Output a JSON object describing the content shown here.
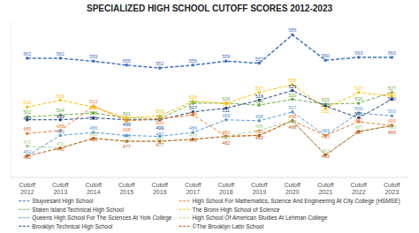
{
  "chart_data": {
    "type": "line",
    "title": "SPECIALIZED HIGH SCHOOL CUTOFF SCORES 2012-2023",
    "categories": [
      "Cutoff\n2012",
      "Cutoff\n2013",
      "Cutoff\n2014",
      "Cutoff\n2015",
      "Cutoff\n2016",
      "Cutoff\n2017",
      "Cutoff\n2018",
      "Cutoff\n2019",
      "Cutoff\n2020",
      "Cutoff\n2021",
      "Cutoff\n2022",
      "Cutoff\n2023"
    ],
    "series": [
      {
        "name": "Stuyvesant High School",
        "color": "#4472c4",
        "values": [
          562,
          562,
          559,
          555,
          552,
          555,
          559,
          557,
          586,
          560,
          563,
          563
        ]
      },
      {
        "name": "Staten Island Technical High School",
        "color": "#70ad47",
        "values": [
          502,
          504,
          506,
          501,
          500,
          516,
          516,
          514,
          520,
          515,
          516,
          527
        ]
      },
      {
        "name": "Queens High School For The Sciences At York College",
        "color": "#5b9bd5",
        "values": [
          462,
          483,
          486,
          483,
          482,
          486,
          499,
          498,
          507,
          483,
          506,
          503
        ]
      },
      {
        "name": "Brooklyn Technical High School",
        "color": "#264478",
        "values": [
          499,
          499,
          501,
          499,
          499,
          507,
          511,
          519,
          529,
          513,
          501,
          520
        ]
      },
      {
        "name": "High School For Mathematics, Science And Engineering At City College (HSMSE)",
        "color": "#ed7d31",
        "values": [
          485,
          488,
          513,
          498,
          500,
          504,
          482,
          483,
          498,
          483,
          497,
          493
        ]
      },
      {
        "name": "The Bronx High School of Science",
        "color": "#ffc000",
        "values": [
          512,
          519,
          512,
          501,
          503,
          518,
          516,
          527,
          535,
          511,
          527,
          523
        ]
      },
      {
        "name": "High School Of American Studies At Lehman College",
        "color": "#a9d18e",
        "values": [
          472,
          470,
          480,
          477,
          477,
          479,
          482,
          488,
          498,
          463,
          487,
          493
        ]
      },
      {
        "name": "©The Brooklyn Latin School",
        "color": "#c55a11",
        "values": [
          462,
          470,
          480,
          477,
          477,
          479,
          482,
          483,
          498,
          463,
          487,
          493
        ]
      }
    ],
    "ylim": [
      440,
      600
    ],
    "tick_labels": "x",
    "grid": false,
    "legend": "bottom",
    "data_labels": true,
    "line_style": "dashed",
    "marker": "circle"
  }
}
